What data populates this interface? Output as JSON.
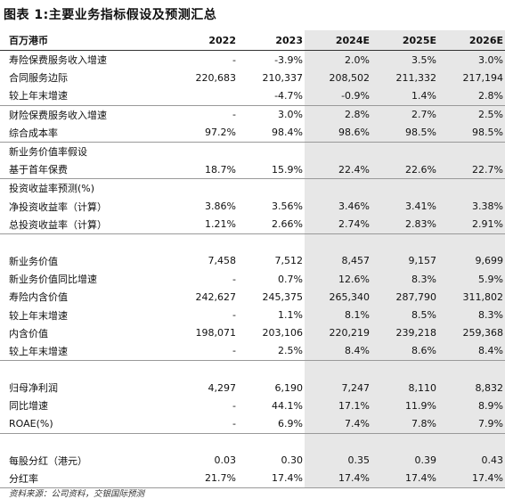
{
  "title": "图表 1:主要业务指标假设及预测汇总",
  "table": {
    "header": [
      "百万港币",
      "2022",
      "2023",
      "2024E",
      "2025E",
      "2026E"
    ],
    "groups": [
      [
        [
          "寿险保费服务收入增速",
          "-",
          "-3.9%",
          "2.0%",
          "3.5%",
          "3.0%"
        ],
        [
          "合同服务边际",
          "220,683",
          "210,337",
          "208,502",
          "211,332",
          "217,194"
        ],
        [
          "较上年末增速",
          null,
          "-4.7%",
          "-0.9%",
          "1.4%",
          "2.8%"
        ]
      ],
      [
        [
          "财险保费服务收入增速",
          "-",
          "3.0%",
          "2.8%",
          "2.7%",
          "2.5%"
        ],
        [
          "综合成本率",
          "97.2%",
          "98.4%",
          "98.6%",
          "98.5%",
          "98.5%"
        ]
      ],
      [
        [
          "新业务价值率假设"
        ],
        [
          "基于首年保费",
          "18.7%",
          "15.9%",
          "22.4%",
          "22.6%",
          "22.7%"
        ]
      ],
      [
        [
          "投资收益率预测(%)"
        ],
        [
          "净投资收益率（计算）",
          "3.86%",
          "3.56%",
          "3.46%",
          "3.41%",
          "3.38%"
        ],
        [
          "总投资收益率（计算）",
          "1.21%",
          "2.66%",
          "2.74%",
          "2.83%",
          "2.91%"
        ]
      ],
      [
        [
          "新业务价值",
          "7,458",
          "7,512",
          "8,457",
          "9,157",
          "9,699"
        ],
        [
          "新业务价值同比增速",
          "-",
          "0.7%",
          "12.6%",
          "8.3%",
          "5.9%"
        ],
        [
          "寿险内含价值",
          "242,627",
          "245,375",
          "265,340",
          "287,790",
          "311,802"
        ],
        [
          "较上年末增速",
          "-",
          "1.1%",
          "8.1%",
          "8.5%",
          "8.3%"
        ],
        [
          "内含价值",
          "198,071",
          "203,106",
          "220,219",
          "239,218",
          "259,368"
        ],
        [
          "较上年末增速",
          "-",
          "2.5%",
          "8.4%",
          "8.6%",
          "8.4%"
        ]
      ],
      [
        [
          "归母净利润",
          "4,297",
          "6,190",
          "7,247",
          "8,110",
          "8,832"
        ],
        [
          "同比增速",
          "-",
          "44.1%",
          "17.1%",
          "11.9%",
          "8.9%"
        ],
        [
          "ROAE(%)",
          "-",
          "6.9%",
          "7.4%",
          "7.8%",
          "7.9%"
        ]
      ],
      [
        [
          "每股分红（港元）",
          "0.03",
          "0.30",
          "0.35",
          "0.39",
          "0.43"
        ],
        [
          "分红率",
          "21.7%",
          "17.4%",
          "17.4%",
          "17.4%",
          "17.4%"
        ]
      ]
    ]
  },
  "source": "资料来源：公司资料，交银国际预测"
}
